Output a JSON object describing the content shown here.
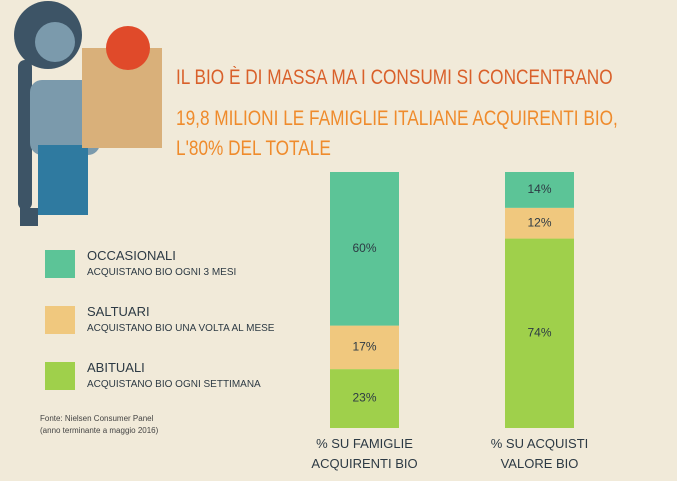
{
  "chart_data": {
    "type": "stacked-bar",
    "title": "IL BIO È DI MASSA MA I CONSUMI SI CONCENTRANO",
    "subtitle": "19,8 MILIONI LE FAMIGLIE ITALIANE ACQUIRENTI BIO, L'80% DEL TOTALE",
    "categories": [
      "% SU FAMIGLIE ACQUIRENTI BIO",
      "% SU ACQUISTI VALORE BIO"
    ],
    "series": [
      {
        "name": "ABITUALI",
        "description": "ACQUISTANO BIO OGNI SETTIMANA",
        "color": "#9fd04b",
        "values": [
          23,
          74
        ],
        "value_labels": [
          "23%",
          "74%"
        ]
      },
      {
        "name": "SALTUARI",
        "description": "ACQUISTANO BIO UNA VOLTA AL MESE",
        "color": "#f0c87e",
        "values": [
          17,
          12
        ],
        "value_labels": [
          "17%",
          "12%"
        ]
      },
      {
        "name": "OCCASIONALI",
        "description": "ACQUISTANO BIO OGNI 3 MESI",
        "color": "#5cc497",
        "values": [
          60,
          14
        ],
        "value_labels": [
          "60%",
          "14%"
        ]
      }
    ],
    "ylim": [
      0,
      100
    ],
    "source": [
      "Fonte: Nielsen Consumer Panel",
      "(anno terminante a maggio 2016)"
    ]
  }
}
